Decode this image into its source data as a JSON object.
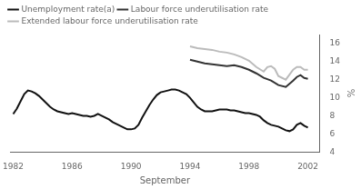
{
  "chart_data": {
    "type": "line",
    "xlabel": "September",
    "ylabel": "%",
    "xlim": [
      1981.8,
      2002.8
    ],
    "ylim": [
      4,
      17
    ],
    "xticks": [
      1982,
      1986,
      1990,
      1994,
      1998,
      2002
    ],
    "yticks": [
      4,
      6,
      8,
      10,
      12,
      14,
      16
    ],
    "grid": false,
    "legend": "upper left",
    "series": [
      {
        "name": "Unemployment rate(a)",
        "color": "#111111",
        "x": [
          1982.0,
          1982.25,
          1982.5,
          1982.75,
          1983.0,
          1983.25,
          1983.5,
          1983.75,
          1984.0,
          1984.25,
          1984.5,
          1984.75,
          1985.0,
          1985.25,
          1985.5,
          1985.75,
          1986.0,
          1986.25,
          1986.5,
          1986.75,
          1987.0,
          1987.25,
          1987.5,
          1987.75,
          1988.0,
          1988.25,
          1988.5,
          1988.75,
          1989.0,
          1989.25,
          1989.5,
          1989.75,
          1990.0,
          1990.25,
          1990.5,
          1990.75,
          1991.0,
          1991.25,
          1991.5,
          1991.75,
          1992.0,
          1992.25,
          1992.5,
          1992.75,
          1993.0,
          1993.25,
          1993.5,
          1993.75,
          1994.0,
          1994.25,
          1994.5,
          1994.75,
          1995.0,
          1995.25,
          1995.5,
          1995.75,
          1996.0,
          1996.25,
          1996.5,
          1996.75,
          1997.0,
          1997.25,
          1997.5,
          1997.75,
          1998.0,
          1998.25,
          1998.5,
          1998.75,
          1999.0,
          1999.25,
          1999.5,
          1999.75,
          2000.0,
          2000.25,
          2000.5,
          2000.75,
          2001.0,
          2001.25,
          2001.5,
          2001.75,
          2002.0
        ],
        "values": [
          8.2,
          8.8,
          9.6,
          10.4,
          10.8,
          10.7,
          10.5,
          10.2,
          9.8,
          9.4,
          9.0,
          8.7,
          8.5,
          8.4,
          8.3,
          8.2,
          8.3,
          8.2,
          8.1,
          8.0,
          8.0,
          7.9,
          8.0,
          8.2,
          8.0,
          7.8,
          7.6,
          7.3,
          7.1,
          6.9,
          6.7,
          6.5,
          6.5,
          6.6,
          7.0,
          7.8,
          8.5,
          9.2,
          9.8,
          10.3,
          10.6,
          10.7,
          10.8,
          10.9,
          10.9,
          10.8,
          10.6,
          10.4,
          10.0,
          9.5,
          9.0,
          8.7,
          8.5,
          8.5,
          8.5,
          8.6,
          8.7,
          8.7,
          8.7,
          8.6,
          8.6,
          8.5,
          8.4,
          8.3,
          8.3,
          8.2,
          8.1,
          7.9,
          7.5,
          7.2,
          7.0,
          6.9,
          6.8,
          6.6,
          6.4,
          6.3,
          6.5,
          7.0,
          7.2,
          6.9,
          6.7
        ]
      },
      {
        "name": "Labour force underutilisation rate",
        "color": "#333333",
        "x": [
          1994.0,
          1994.5,
          1995.0,
          1995.5,
          1996.0,
          1996.5,
          1997.0,
          1997.5,
          1998.0,
          1998.5,
          1999.0,
          1999.5,
          2000.0,
          2000.5,
          2001.0,
          2001.25,
          2001.5,
          2001.75,
          2002.0
        ],
        "values": [
          14.2,
          14.0,
          13.8,
          13.7,
          13.6,
          13.5,
          13.6,
          13.4,
          13.1,
          12.7,
          12.2,
          11.9,
          11.4,
          11.2,
          11.9,
          12.3,
          12.5,
          12.2,
          12.1
        ]
      },
      {
        "name": "Extended labour force underutilisation rate",
        "color": "#bbbbbb",
        "x": [
          1994.0,
          1994.5,
          1995.0,
          1995.5,
          1996.0,
          1996.5,
          1997.0,
          1997.5,
          1998.0,
          1998.5,
          1999.0,
          1999.25,
          1999.5,
          1999.75,
          2000.0,
          2000.5,
          2001.0,
          2001.25,
          2001.5,
          2001.75,
          2002.0
        ],
        "values": [
          15.7,
          15.5,
          15.4,
          15.3,
          15.1,
          15.0,
          14.8,
          14.5,
          14.1,
          13.4,
          12.9,
          13.4,
          13.5,
          13.2,
          12.4,
          12.0,
          13.1,
          13.4,
          13.4,
          13.1,
          13.1
        ]
      }
    ]
  }
}
